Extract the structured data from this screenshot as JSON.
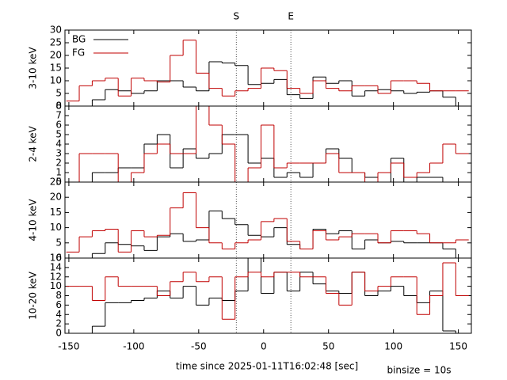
{
  "chart_data": [
    {
      "type": "histogram",
      "ylabel": "3-10 keV",
      "legend": "top-left",
      "markers": [
        {
          "label": "S",
          "x": -21
        },
        {
          "label": "E",
          "x": 21
        }
      ],
      "bins": [
        -152,
        -142,
        -132,
        -122,
        -112,
        -102,
        -92,
        -82,
        -72,
        -62,
        -52,
        -42,
        -32,
        -22,
        -12,
        -2,
        8,
        18,
        28,
        38,
        48,
        58,
        68,
        78,
        88,
        98,
        108,
        118,
        128,
        138,
        148,
        158
      ],
      "xlim": [
        -153,
        160
      ],
      "ylim": [
        0,
        30
      ],
      "yticks": [
        0,
        5,
        10,
        15,
        20,
        25,
        30
      ],
      "series": [
        {
          "name": "BG",
          "color": "#000000",
          "values": [
            0,
            0,
            2.5,
            6.5,
            6,
            5,
            6,
            10,
            10,
            7.5,
            6,
            17.5,
            17,
            16,
            8.5,
            9,
            10.5,
            4.5,
            3,
            11.5,
            9,
            10,
            4,
            6,
            6.5,
            6,
            5,
            5.5,
            6,
            3.5,
            0
          ]
        },
        {
          "name": "FG",
          "color": "#c00000",
          "values": [
            2,
            8,
            10,
            11,
            4,
            11,
            10,
            9.5,
            20,
            26,
            13,
            7,
            4,
            6,
            7,
            15,
            14,
            7,
            5,
            10,
            7,
            6,
            8,
            8,
            5,
            10,
            10,
            9,
            6,
            6,
            6
          ]
        }
      ]
    },
    {
      "type": "histogram",
      "ylabel": "2-4 keV",
      "bins": [
        -152,
        -142,
        -132,
        -122,
        -112,
        -102,
        -92,
        -82,
        -72,
        -62,
        -52,
        -42,
        -32,
        -22,
        -12,
        -2,
        8,
        18,
        28,
        38,
        48,
        58,
        68,
        78,
        88,
        98,
        108,
        118,
        128,
        138,
        148,
        158
      ],
      "xlim": [
        -153,
        160
      ],
      "ylim": [
        0,
        8
      ],
      "yticks": [
        0,
        1,
        2,
        3,
        4,
        5,
        6,
        7,
        8
      ],
      "series": [
        {
          "name": "BG",
          "color": "#000000",
          "values": [
            0,
            0,
            1,
            1,
            1.5,
            1.5,
            4,
            5,
            1.5,
            3.5,
            2.5,
            3,
            5,
            5,
            2,
            2.5,
            0.5,
            1,
            0.5,
            2,
            3.5,
            2.5,
            1,
            0.5,
            0,
            2.5,
            0,
            0.5,
            0.5,
            0,
            0
          ]
        },
        {
          "name": "FG",
          "color": "#c00000",
          "values": [
            0,
            3,
            3,
            3,
            0,
            1,
            3,
            4,
            3,
            3,
            8,
            6,
            4,
            0,
            1.5,
            6,
            1.5,
            2,
            2,
            2,
            3,
            1,
            1,
            0,
            1,
            2,
            0.5,
            1,
            2,
            4,
            3
          ]
        }
      ]
    },
    {
      "type": "histogram",
      "ylabel": "4-10 keV",
      "bins": [
        -152,
        -142,
        -132,
        -122,
        -112,
        -102,
        -92,
        -82,
        -72,
        -62,
        -52,
        -42,
        -32,
        -22,
        -12,
        -2,
        8,
        18,
        28,
        38,
        48,
        58,
        68,
        78,
        88,
        98,
        108,
        118,
        128,
        138,
        148,
        158
      ],
      "xlim": [
        -153,
        160
      ],
      "ylim": [
        0,
        25
      ],
      "yticks": [
        0,
        5,
        10,
        15,
        20,
        25
      ],
      "series": [
        {
          "name": "BG",
          "color": "#000000",
          "values": [
            0,
            0,
            1.5,
            5,
            4.5,
            4,
            2.5,
            7,
            8,
            5.5,
            6,
            15.5,
            13,
            11,
            7.5,
            7,
            10,
            4.5,
            3,
            9.5,
            8,
            9,
            3,
            6,
            5,
            5.5,
            5,
            5,
            5,
            3,
            0
          ]
        },
        {
          "name": "FG",
          "color": "#c00000",
          "values": [
            2,
            7,
            9,
            9.5,
            2,
            9,
            7,
            7.5,
            16.5,
            21.5,
            10,
            5,
            3,
            5,
            6,
            12,
            13,
            5.5,
            3,
            9,
            6,
            7,
            8,
            8,
            5,
            9,
            9,
            8,
            5,
            5,
            6
          ]
        }
      ]
    },
    {
      "type": "histogram",
      "ylabel": "10-20 keV",
      "xlabel": "time since 2025-01-11T16:02:48 [sec]",
      "note": "binsize = 10s",
      "bins": [
        -152,
        -142,
        -132,
        -122,
        -112,
        -102,
        -92,
        -82,
        -72,
        -62,
        -52,
        -42,
        -32,
        -22,
        -12,
        -2,
        8,
        18,
        28,
        38,
        48,
        58,
        68,
        78,
        88,
        98,
        108,
        118,
        128,
        138,
        148,
        158
      ],
      "xlim": [
        -153,
        160
      ],
      "ylim": [
        0,
        16
      ],
      "yticks": [
        0,
        2,
        4,
        6,
        8,
        10,
        12,
        14,
        16
      ],
      "xticks": [
        -150,
        -100,
        -50,
        0,
        50,
        100,
        150
      ],
      "series": [
        {
          "name": "BG",
          "color": "#000000",
          "values": [
            0,
            0,
            1.5,
            6.5,
            6.5,
            7,
            7.5,
            9,
            7.5,
            10,
            6,
            7.5,
            7,
            9,
            16,
            8.5,
            13,
            9,
            13,
            10.5,
            9,
            8.5,
            13,
            8,
            9,
            10,
            8,
            6.5,
            9,
            0.5,
            0
          ]
        },
        {
          "name": "FG",
          "color": "#c00000",
          "values": [
            10,
            10,
            7,
            12,
            10,
            10,
            10,
            8,
            11,
            13,
            11,
            12,
            3,
            12,
            13,
            12,
            13,
            13,
            12,
            12,
            8.5,
            6,
            13,
            9,
            10,
            12,
            12,
            4,
            8,
            15,
            8
          ]
        }
      ]
    }
  ]
}
